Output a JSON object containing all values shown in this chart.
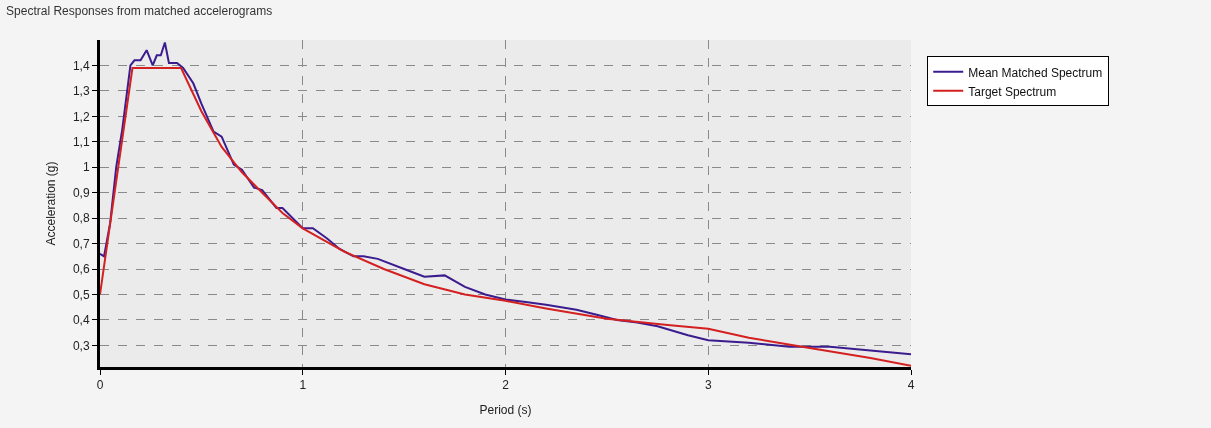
{
  "chart_data": {
    "type": "line",
    "title": "Spectral Responses from matched accelerograms",
    "xlabel": "Period (s)",
    "ylabel": "Acceleration (g)",
    "xlim": [
      0,
      4
    ],
    "xticks": [
      0,
      1,
      2,
      3,
      4
    ],
    "ylim": [
      0.215,
      1.5
    ],
    "yticks": [
      {
        "value": 0.3,
        "label": "0,3"
      },
      {
        "value": 0.4,
        "label": "0,4"
      },
      {
        "value": 0.5,
        "label": "0,5"
      },
      {
        "value": 0.6,
        "label": "0,6"
      },
      {
        "value": 0.7,
        "label": "0,7"
      },
      {
        "value": 0.8,
        "label": "0,8"
      },
      {
        "value": 0.9,
        "label": "0,9"
      },
      {
        "value": 1,
        "label": "1"
      },
      {
        "value": 1.1,
        "label": "1,1"
      },
      {
        "value": 1.2,
        "label": "1,2"
      },
      {
        "value": 1.3,
        "label": "1,3"
      },
      {
        "value": 1.4,
        "label": "1,4"
      }
    ],
    "grid": true,
    "legend": "top right",
    "marker": "none",
    "line_style": "solid",
    "series": [
      {
        "name": "Mean Matched Spectrum",
        "color": "#3b1c8e",
        "x": [
          0,
          0.02,
          0.05,
          0.08,
          0.11,
          0.15,
          0.17,
          0.2,
          0.23,
          0.26,
          0.28,
          0.3,
          0.32,
          0.34,
          0.38,
          0.41,
          0.46,
          0.5,
          0.56,
          0.6,
          0.66,
          0.7,
          0.76,
          0.8,
          0.87,
          0.9,
          1.0,
          1.05,
          1.12,
          1.18,
          1.25,
          1.3,
          1.37,
          1.5,
          1.6,
          1.7,
          1.8,
          1.9,
          2.0,
          2.1,
          2.2,
          2.35,
          2.45,
          2.55,
          2.65,
          2.75,
          2.9,
          3.0,
          3.2,
          3.4,
          3.6,
          3.8,
          4.0
        ],
        "values": [
          0.66,
          0.65,
          0.78,
          1.0,
          1.15,
          1.4,
          1.42,
          1.42,
          1.46,
          1.4,
          1.44,
          1.44,
          1.49,
          1.41,
          1.41,
          1.39,
          1.33,
          1.25,
          1.14,
          1.12,
          1.01,
          0.99,
          0.92,
          0.91,
          0.84,
          0.84,
          0.76,
          0.76,
          0.72,
          0.68,
          0.65,
          0.65,
          0.64,
          0.6,
          0.57,
          0.575,
          0.53,
          0.5,
          0.48,
          0.47,
          0.46,
          0.44,
          0.42,
          0.4,
          0.39,
          0.375,
          0.34,
          0.32,
          0.31,
          0.295,
          0.295,
          0.28,
          0.265
        ]
      },
      {
        "name": "Target Spectrum",
        "color": "#d42020",
        "x": [
          0,
          0.16,
          0.4,
          0.5,
          0.6,
          0.7,
          0.8,
          0.9,
          1.0,
          1.2,
          1.4,
          1.6,
          1.8,
          2.0,
          2.2,
          2.5,
          2.8,
          3.0,
          3.2,
          3.5,
          3.8,
          4.0
        ],
        "values": [
          0.5,
          1.39,
          1.39,
          1.22,
          1.08,
          0.98,
          0.9,
          0.82,
          0.76,
          0.67,
          0.6,
          0.54,
          0.5,
          0.475,
          0.445,
          0.405,
          0.38,
          0.365,
          0.33,
          0.29,
          0.25,
          0.22
        ]
      }
    ]
  }
}
